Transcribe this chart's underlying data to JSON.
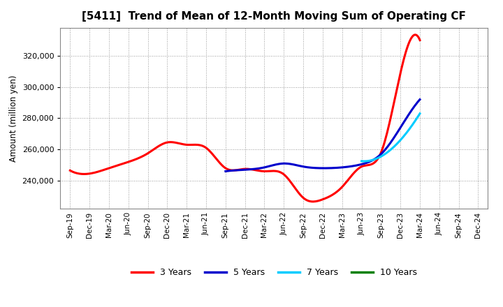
{
  "title": "[5411]  Trend of Mean of 12-Month Moving Sum of Operating CF",
  "ylabel": "Amount (million yen)",
  "background_color": "#ffffff",
  "grid_color": "#999999",
  "x_labels": [
    "Sep-19",
    "Dec-19",
    "Mar-20",
    "Jun-20",
    "Sep-20",
    "Dec-20",
    "Mar-21",
    "Jun-21",
    "Sep-21",
    "Dec-21",
    "Mar-22",
    "Jun-22",
    "Sep-22",
    "Dec-22",
    "Mar-23",
    "Jun-23",
    "Sep-23",
    "Dec-23",
    "Mar-24",
    "Jun-24",
    "Sep-24",
    "Dec-24"
  ],
  "series": {
    "3 Years": {
      "color": "#ff0000",
      "data_x": [
        0,
        1,
        2,
        3,
        4,
        5,
        6,
        7,
        8,
        9,
        10,
        11,
        12,
        13,
        14,
        15,
        16,
        17,
        18
      ],
      "data_y": [
        246500,
        244500,
        248000,
        252000,
        257500,
        264500,
        263000,
        261000,
        248000,
        247500,
        246000,
        244000,
        229000,
        228000,
        236000,
        249000,
        258000,
        309000,
        330000
      ]
    },
    "5 Years": {
      "color": "#0000cc",
      "data_x": [
        8,
        9,
        10,
        11,
        12,
        13,
        14,
        15,
        16,
        17,
        18
      ],
      "data_y": [
        246000,
        247000,
        248500,
        251000,
        249000,
        248000,
        248500,
        250500,
        257000,
        274000,
        292000
      ]
    },
    "7 Years": {
      "color": "#00ccff",
      "data_x": [
        15,
        16,
        17,
        18
      ],
      "data_y": [
        252500,
        255500,
        266000,
        283000
      ]
    },
    "10 Years": {
      "color": "#008000",
      "data_x": [],
      "data_y": []
    }
  },
  "ylim": [
    222000,
    338000
  ],
  "yticks": [
    240000,
    260000,
    280000,
    300000,
    320000
  ],
  "legend_labels": [
    "3 Years",
    "5 Years",
    "7 Years",
    "10 Years"
  ],
  "legend_colors": [
    "#ff0000",
    "#0000cc",
    "#00ccff",
    "#008000"
  ]
}
